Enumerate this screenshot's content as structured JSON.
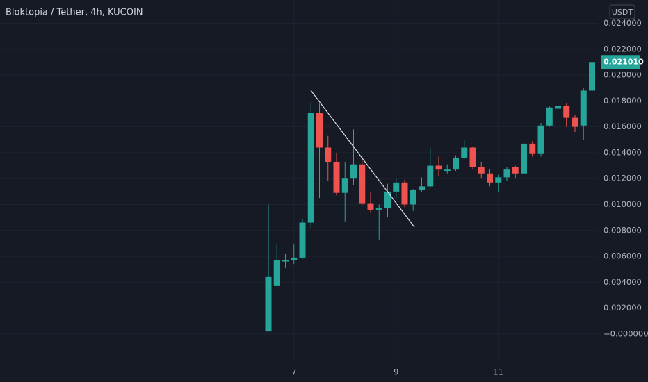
{
  "chart_data": {
    "type": "candlestick",
    "title": "Bloktopia / Tether, 4h, KUCOIN",
    "currency": "USDT",
    "categories": [
      null,
      null,
      null,
      "7",
      null,
      null,
      null,
      null,
      null,
      null,
      null,
      null,
      null,
      null,
      null,
      "9",
      null,
      null,
      null,
      null,
      null,
      null,
      null,
      null,
      null,
      null,
      null,
      "11",
      null,
      null,
      null,
      null,
      null,
      null,
      null,
      null,
      null,
      null,
      null
    ],
    "open": [
      0.0002,
      0.0037,
      0.0056,
      0.0057,
      0.0059,
      0.0086,
      0.0171,
      0.0144,
      0.0133,
      0.0109,
      0.012,
      0.0131,
      0.0101,
      0.0096,
      0.0097,
      0.011,
      0.0117,
      0.01,
      0.0111,
      0.0114,
      0.013,
      0.0126,
      0.0127,
      0.0136,
      0.0144,
      0.0129,
      0.0124,
      0.0117,
      0.0121,
      0.0129,
      0.0124,
      0.0147,
      0.0139,
      0.0161,
      0.0174,
      0.0176,
      0.0167,
      0.0161,
      0.0188
    ],
    "high": [
      0.01,
      0.0069,
      0.0062,
      0.0069,
      0.0089,
      0.0179,
      0.0178,
      0.0153,
      0.014,
      0.0133,
      0.0158,
      0.0137,
      0.011,
      0.01,
      0.0116,
      0.012,
      0.0119,
      0.0112,
      0.0121,
      0.0144,
      0.0137,
      0.0131,
      0.0138,
      0.015,
      0.0145,
      0.0133,
      0.0127,
      0.0123,
      0.0129,
      0.013,
      0.0147,
      0.0149,
      0.0163,
      0.0176,
      0.0177,
      0.0178,
      0.0169,
      0.019,
      0.023
    ],
    "low": [
      0.0002,
      0.0037,
      0.0051,
      0.0054,
      0.0058,
      0.0082,
      0.0105,
      0.0118,
      0.0107,
      0.0087,
      0.0115,
      0.0099,
      0.0094,
      0.0073,
      0.009,
      0.0105,
      0.0098,
      0.0095,
      0.011,
      0.0113,
      0.0122,
      0.0124,
      0.0126,
      0.0135,
      0.0127,
      0.012,
      0.0114,
      0.011,
      0.0118,
      0.012,
      0.0123,
      0.0137,
      0.0137,
      0.016,
      0.0162,
      0.016,
      0.0156,
      0.015,
      0.0187
    ],
    "close": [
      0.0044,
      0.0057,
      0.0057,
      0.0059,
      0.0086,
      0.0171,
      0.0144,
      0.0133,
      0.0109,
      0.012,
      0.0131,
      0.0101,
      0.0096,
      0.0097,
      0.011,
      0.0117,
      0.01,
      0.0111,
      0.0114,
      0.013,
      0.0127,
      0.0127,
      0.0136,
      0.0144,
      0.0129,
      0.0124,
      0.0117,
      0.0121,
      0.0127,
      0.0124,
      0.0147,
      0.0139,
      0.0161,
      0.0175,
      0.0176,
      0.0167,
      0.016,
      0.0188,
      0.02101
    ],
    "up_color": "#26a69a",
    "down_color": "#ef5350",
    "last_price": {
      "value": 0.02101,
      "label": "0.021010"
    },
    "ylim": [
      -0.0021,
      0.0258
    ],
    "yticks": [
      {
        "value": 0,
        "label": "−0.000000"
      },
      {
        "value": 0.002,
        "label": "0.002000"
      },
      {
        "value": 0.004,
        "label": "0.004000"
      },
      {
        "value": 0.006,
        "label": "0.006000"
      },
      {
        "value": 0.008,
        "label": "0.008000"
      },
      {
        "value": 0.01,
        "label": "0.010000"
      },
      {
        "value": 0.012,
        "label": "0.012000"
      },
      {
        "value": 0.014,
        "label": "0.014000"
      },
      {
        "value": 0.016,
        "label": "0.016000"
      },
      {
        "value": 0.018,
        "label": "0.018000"
      },
      {
        "value": 0.02,
        "label": "0.020000"
      },
      {
        "value": 0.022,
        "label": "0.022000"
      },
      {
        "value": 0.024,
        "label": "0.024000"
      }
    ],
    "grid": true
  }
}
